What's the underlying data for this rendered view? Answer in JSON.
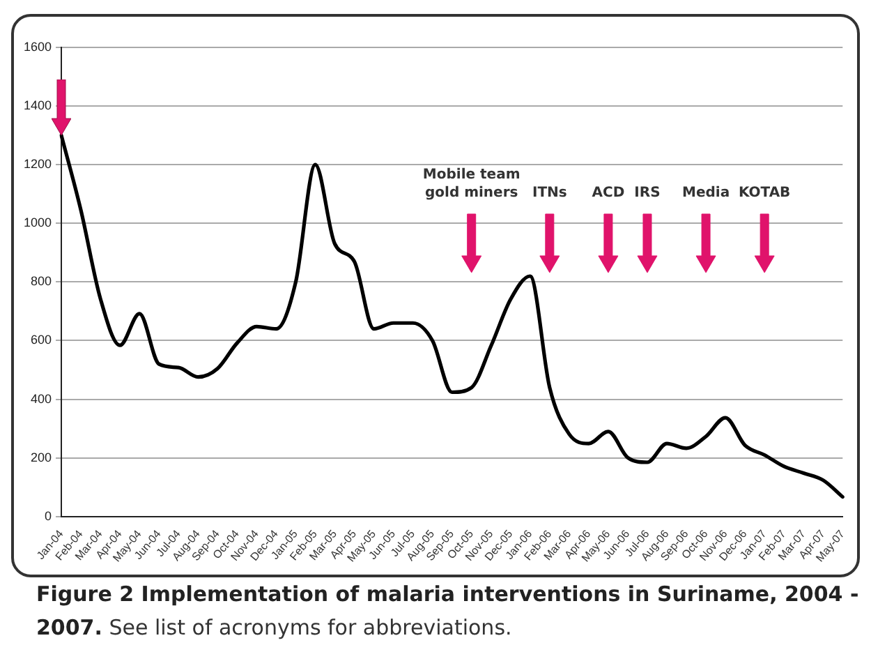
{
  "chart_data": {
    "type": "line",
    "title": "Figure 2 Implementation of malaria interventions in Suriname, 2004 - 2007.",
    "categories": [
      "Jan-04",
      "Feb-04",
      "Mar-04",
      "Apr-04",
      "May-04",
      "Jun-04",
      "Jul-04",
      "Aug-04",
      "Sep-04",
      "Oct-04",
      "Nov-04",
      "Dec-04",
      "Jan-05",
      "Feb-05",
      "Mar-05",
      "Apr-05",
      "May-05",
      "Jun-05",
      "Jul-05",
      "Aug-05",
      "Sep-05",
      "Oct-05",
      "Nov-05",
      "Dec-05",
      "Jan-06",
      "Feb-06",
      "Mar-06",
      "Apr-06",
      "May-06",
      "Jun-06",
      "Jul-06",
      "Aug-06",
      "Sep-06",
      "Oct-06",
      "Nov-06",
      "Dec-06",
      "Jan-07",
      "Feb-07",
      "Mar-07",
      "Apr-07",
      "May-07"
    ],
    "series": [
      {
        "color": "#000000",
        "values": [
          1300,
          1045,
          743,
          584,
          692,
          520,
          508,
          476,
          505,
          592,
          648,
          640,
          800,
          1200,
          930,
          870,
          640,
          660,
          660,
          600,
          424,
          440,
          582,
          741,
          820,
          440,
          281,
          249,
          290,
          201,
          185,
          249,
          233,
          273,
          337,
          243,
          210,
          171,
          148,
          124,
          67
        ]
      }
    ],
    "ylim": [
      0,
      1600
    ],
    "yticks": [
      0,
      200,
      400,
      600,
      800,
      1000,
      1200,
      1400,
      1600
    ],
    "grid": "y",
    "marker": "none",
    "line_style": "solid",
    "ref_lines": [
      {
        "axis": "x",
        "value": "Oct-05",
        "label": "Mobile team\ngold miners",
        "color": "#e0136b"
      },
      {
        "axis": "x",
        "value": "Feb-06",
        "label": "ITNs",
        "color": "#e0136b"
      },
      {
        "axis": "x",
        "value": "May-06",
        "label": "ACD",
        "color": "#e0136b"
      },
      {
        "axis": "x",
        "value": "Jul-06",
        "label": "IRS",
        "color": "#e0136b"
      },
      {
        "axis": "x",
        "value": "Oct-06",
        "label": "Media",
        "color": "#e0136b"
      },
      {
        "axis": "x",
        "value": "Jan-07",
        "label": "KOTAB",
        "color": "#e0136b"
      }
    ],
    "annotations": [
      "See list of acronyms for abbreviations."
    ]
  }
}
